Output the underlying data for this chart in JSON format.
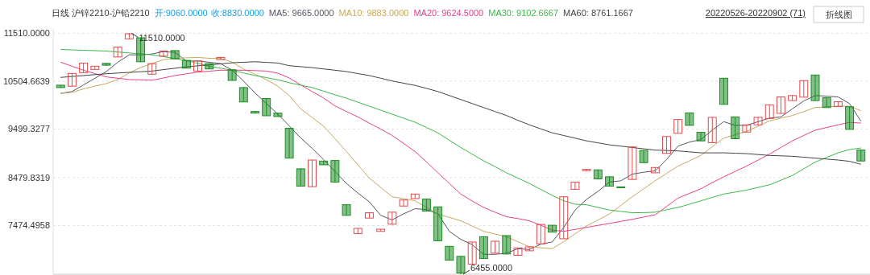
{
  "chart_data": {
    "type": "candlestick",
    "title": "日线  沪锌2210-沪铅2210",
    "annotations": [
      {
        "text": "开:9060.0000"
      },
      {
        "text": "收:8830.0000"
      },
      {
        "text": "20220526-20220902 (71)"
      },
      {
        "text": "折线图"
      },
      "11510.0000",
      "6455.0000"
    ],
    "categories": [
      null,
      null,
      null,
      null,
      null,
      null,
      null,
      null,
      null,
      null,
      null,
      null,
      null,
      null,
      null,
      null,
      null,
      null,
      null,
      null,
      null,
      null,
      null,
      null,
      null,
      null,
      null,
      null,
      null,
      null,
      null,
      null,
      null,
      null,
      null,
      null,
      null,
      null,
      null,
      null,
      null,
      null,
      null,
      null,
      null,
      null,
      null,
      null,
      null,
      null,
      null,
      null,
      null,
      null,
      null,
      null,
      null,
      null,
      null,
      null,
      null,
      null,
      null,
      null,
      null,
      null,
      null,
      null,
      null,
      null,
      null
    ],
    "ohlc": [
      [
        10420,
        10420,
        10370,
        10370
      ],
      [
        10399,
        10667,
        10399,
        10667
      ],
      [
        10684,
        10885,
        10684,
        10885
      ],
      [
        10751,
        10818,
        10751,
        10818
      ],
      [
        10878,
        10878,
        10839,
        10839
      ],
      [
        11012,
        11220,
        11012,
        11220
      ],
      [
        11393,
        11510,
        11393,
        11498
      ],
      [
        11414,
        11414,
        10912,
        10912
      ],
      [
        10650,
        10873,
        10650,
        10873
      ],
      [
        11029,
        11136,
        11029,
        11136
      ],
      [
        11146,
        11146,
        10974,
        10974
      ],
      [
        10940,
        10940,
        10778,
        10778
      ],
      [
        10717,
        10928,
        10717,
        10928
      ],
      [
        10873,
        10873,
        10761,
        10761
      ],
      [
        10957,
        11002,
        10957,
        11002
      ],
      [
        10744,
        10744,
        10521,
        10521
      ],
      [
        10370,
        10370,
        10069,
        10069
      ],
      [
        9868,
        9868,
        9834,
        9834
      ],
      [
        10141,
        10141,
        9779,
        9779
      ],
      [
        9834,
        9834,
        9762,
        9762
      ],
      [
        9516,
        9516,
        8890,
        8890
      ],
      [
        8666,
        8666,
        8303,
        8303
      ],
      [
        8292,
        8850,
        8292,
        8850
      ],
      [
        8828,
        8828,
        8750,
        8750
      ],
      [
        8840,
        8840,
        8388,
        8388
      ],
      [
        7912,
        7912,
        7689,
        7689
      ],
      [
        7308,
        7416,
        7308,
        7416
      ],
      [
        7633,
        7744,
        7633,
        7744
      ],
      [
        7353,
        7399,
        7353,
        7399
      ],
      [
        7504,
        7756,
        7504,
        7756
      ],
      [
        7885,
        8012,
        7885,
        8012
      ],
      [
        8041,
        8136,
        8041,
        8136
      ],
      [
        8031,
        8031,
        7780,
        7780
      ],
      [
        7868,
        7868,
        7157,
        7157
      ],
      [
        7040,
        7040,
        6750,
        6750
      ],
      [
        6829,
        6829,
        6455,
        6480
      ],
      [
        6666,
        7131,
        6666,
        7131
      ],
      [
        7241,
        7241,
        6783,
        6783
      ],
      [
        6896,
        7147,
        6896,
        7147
      ],
      [
        7265,
        7265,
        6879,
        6879
      ],
      [
        6851,
        7006,
        6851,
        7006
      ],
      [
        6946,
        7030,
        6946,
        7030
      ],
      [
        7090,
        7499,
        7090,
        7499
      ],
      [
        7482,
        7482,
        7337,
        7337
      ],
      [
        7198,
        8079,
        7198,
        8079
      ],
      [
        8237,
        8388,
        8237,
        8388
      ],
      [
        8627,
        8655,
        8627,
        8655
      ],
      [
        8644,
        8644,
        8455,
        8455
      ],
      [
        8498,
        8498,
        8303,
        8303
      ],
      [
        8287,
        8287,
        8270,
        8270
      ],
      [
        8443,
        9125,
        8443,
        9125
      ],
      [
        9051,
        9051,
        8795,
        8795
      ],
      [
        8582,
        8694,
        8582,
        8694
      ],
      [
        8991,
        9343,
        8991,
        9343
      ],
      [
        9410,
        9700,
        9410,
        9700
      ],
      [
        9839,
        9839,
        9578,
        9578
      ],
      [
        9432,
        9432,
        9252,
        9252
      ],
      [
        9214,
        9745,
        9214,
        9745
      ],
      [
        10566,
        10566,
        10018,
        10018
      ],
      [
        9755,
        9755,
        9298,
        9298
      ],
      [
        9437,
        9588,
        9437,
        9588
      ],
      [
        9588,
        9745,
        9588,
        9745
      ],
      [
        9722,
        10007,
        9722,
        10007
      ],
      [
        9829,
        10174,
        9829,
        10174
      ],
      [
        10097,
        10203,
        10097,
        10203
      ],
      [
        10169,
        10516,
        10169,
        10516
      ],
      [
        10633,
        10633,
        10097,
        10097
      ],
      [
        10157,
        10157,
        9951,
        9951
      ],
      [
        9973,
        10074,
        9973,
        10074
      ],
      [
        9968,
        9968,
        9494,
        9494
      ],
      [
        9060,
        9060,
        8830,
        8830
      ]
    ],
    "series": [
      {
        "type": "line",
        "name": "MA5: 9665.0000",
        "color": "#555566",
        "values": [
          10248,
          10287,
          10426,
          10566,
          10706,
          10901,
          11057,
          11057,
          11074,
          11124,
          11108,
          10928,
          10928,
          10901,
          10873,
          10734,
          10509,
          10258,
          10035,
          9812,
          9566,
          9314,
          9097,
          8862,
          8611,
          8359,
          8158,
          7974,
          7689,
          7593,
          7722,
          7828,
          7811,
          7722,
          7354,
          7186,
          7074,
          6872,
          6872,
          6896,
          6990,
          6973,
          7085,
          7131,
          7437,
          7801,
          8024,
          8192,
          8388,
          8414,
          8555,
          8594,
          8622,
          8862,
          9142,
          9226,
          9281,
          9477,
          9655,
          9578,
          9578,
          9655,
          9728,
          9755,
          9923,
          10090,
          10203,
          10191,
          10174,
          10035,
          9665
        ]
      },
      {
        "type": "line",
        "name": "MA10: 9883.0000",
        "color": "#c8a860",
        "values": [
          10248,
          10270,
          10342,
          10399,
          10454,
          10538,
          10677,
          10789,
          10873,
          10957,
          10985,
          10995,
          11002,
          10985,
          10985,
          10902,
          10761,
          10650,
          10538,
          10399,
          10203,
          9923,
          9742,
          9561,
          9298,
          9030,
          8750,
          8471,
          8275,
          8079,
          8041,
          7995,
          7856,
          7717,
          7647,
          7576,
          7466,
          7354,
          7298,
          7241,
          7136,
          7030,
          7010,
          6990,
          7136,
          7303,
          7466,
          7591,
          7717,
          7898,
          8079,
          8247,
          8414,
          8569,
          8723,
          8833,
          8946,
          9130,
          9309,
          9381,
          9449,
          9561,
          9671,
          9728,
          9784,
          9868,
          9951,
          9968,
          9980,
          9980,
          9883
        ]
      },
      {
        "type": "line",
        "name": "MA20: 9624.5000",
        "color": "#e8408a",
        "values": [
          10902,
          10818,
          10734,
          10664,
          10593,
          10566,
          10538,
          10533,
          10526,
          10571,
          10622,
          10659,
          10694,
          10714,
          10734,
          10734,
          10734,
          10726,
          10717,
          10672,
          10571,
          10426,
          10287,
          10152,
          9985,
          9868,
          9755,
          9624,
          9499,
          9365,
          9197,
          9030,
          8812,
          8582,
          8359,
          8136,
          7990,
          7856,
          7756,
          7660,
          7622,
          7576,
          7479,
          7382,
          7354,
          7395,
          7437,
          7479,
          7521,
          7563,
          7605,
          7655,
          7700,
          7876,
          8052,
          8150,
          8247,
          8376,
          8498,
          8611,
          8723,
          8849,
          8974,
          9113,
          9252,
          9365,
          9477,
          9532,
          9588,
          9640,
          9624.5
        ]
      },
      {
        "type": "line",
        "name": "MA30: 9102.6667",
        "color": "#3cb84a",
        "values": [
          11170,
          11161,
          11153,
          11145,
          11136,
          11116,
          11096,
          11078,
          11057,
          11019,
          10979,
          10940,
          10878,
          10818,
          10776,
          10734,
          10677,
          10622,
          10580,
          10533,
          10471,
          10421,
          10370,
          10295,
          10219,
          10147,
          10064,
          9980,
          9896,
          9812,
          9728,
          9645,
          9532,
          9420,
          9264,
          9113,
          8974,
          8833,
          8711,
          8582,
          8471,
          8359,
          8233,
          8108,
          7995,
          7923,
          7912,
          7856,
          7801,
          7773,
          7744,
          7747,
          7756,
          7806,
          7856,
          7923,
          7995,
          8066,
          8136,
          8178,
          8220,
          8275,
          8331,
          8426,
          8527,
          8666,
          8807,
          8904,
          9001,
          9070,
          9102.6667
        ]
      },
      {
        "type": "line",
        "name": "MA60: 8761.1667",
        "color": "#444444",
        "values": [
          10583,
          10603,
          10622,
          10642,
          10660,
          10675,
          10689,
          10702,
          10717,
          10747,
          10776,
          10806,
          10826,
          10845,
          10868,
          10890,
          10901,
          10912,
          10898,
          10885,
          10828,
          10809,
          10789,
          10761,
          10734,
          10706,
          10664,
          10622,
          10566,
          10509,
          10462,
          10416,
          10354,
          10287,
          10203,
          10119,
          10035,
          9951,
          9868,
          9784,
          9683,
          9588,
          9504,
          9420,
          9365,
          9309,
          9252,
          9211,
          9169,
          9142,
          9113,
          9085,
          9058,
          9050,
          9041,
          9021,
          9001,
          9001,
          9001,
          8993,
          8984,
          8966,
          8946,
          8938,
          8929,
          8909,
          8890,
          8870,
          8850,
          8823,
          8761.1667
        ]
      }
    ],
    "ylim": [
      6455,
      11600
    ],
    "yticks": [
      {
        "value": 11510,
        "label": "11510.0000"
      },
      {
        "value": 10504.6639,
        "label": "10504.6639"
      },
      {
        "value": 9499.3277,
        "label": "9499.3277"
      },
      {
        "value": 8479.8319,
        "label": "8479.8319"
      },
      {
        "value": 7474.4958,
        "label": "7474.4958"
      }
    ],
    "grid": "y",
    "legend": "top"
  }
}
